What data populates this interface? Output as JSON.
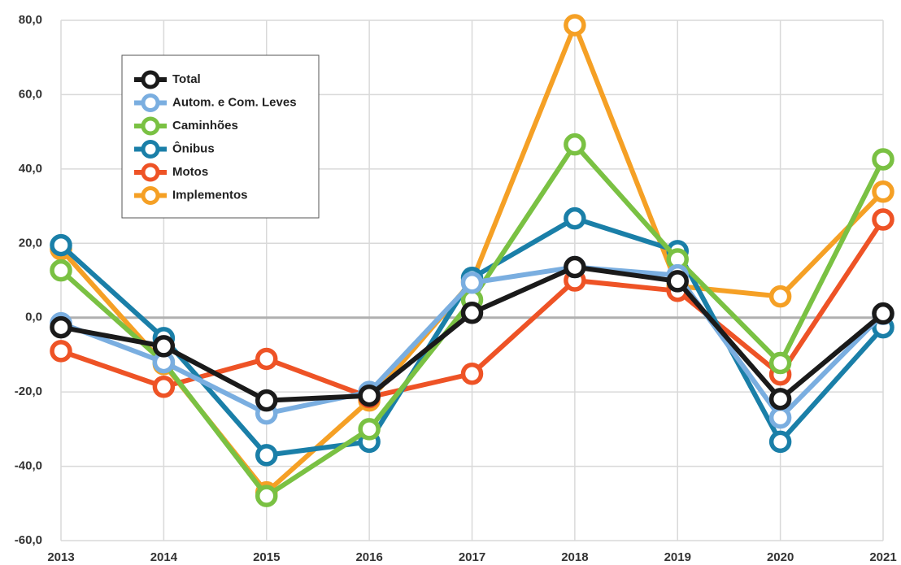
{
  "chart_data": {
    "type": "line",
    "categories": [
      "2013",
      "2014",
      "2015",
      "2016",
      "2017",
      "2018",
      "2019",
      "2020",
      "2021"
    ],
    "series": [
      {
        "name": "Total",
        "color": "#1a1a1a",
        "values": [
          -2.6,
          -7.7,
          -22.3,
          -21.0,
          1.3,
          13.6,
          9.8,
          -21.9,
          1.1
        ]
      },
      {
        "name": "Autom. e Com. Leves",
        "color": "#7aaee0",
        "values": [
          -1.5,
          -12.0,
          -25.8,
          -20.0,
          9.4,
          13.6,
          11.4,
          -26.9,
          1.0
        ]
      },
      {
        "name": "Caminhões",
        "color": "#7ac143",
        "values": [
          12.7,
          -12.0,
          -48.0,
          -30.0,
          4.8,
          46.6,
          15.7,
          -12.2,
          42.6
        ]
      },
      {
        "name": "Ônibus",
        "color": "#1a7fa8",
        "values": [
          19.5,
          -5.5,
          -37.0,
          -33.4,
          10.7,
          26.7,
          17.9,
          -33.4,
          -2.6
        ]
      },
      {
        "name": "Motos",
        "color": "#ee5326",
        "values": [
          -9.0,
          -18.6,
          -11.1,
          -21.4,
          -15.1,
          10.0,
          7.2,
          -15.3,
          26.4
        ]
      },
      {
        "name": "Implementos",
        "color": "#f5a025",
        "values": [
          18.4,
          -12.5,
          -47.0,
          -22.3,
          9.8,
          78.7,
          8.5,
          5.7,
          33.9
        ]
      }
    ],
    "ylim": [
      -60,
      80
    ],
    "yticks": [
      {
        "value": -60,
        "label": "-60,0"
      },
      {
        "value": -40,
        "label": "-40,0"
      },
      {
        "value": -20,
        "label": "-20,0"
      },
      {
        "value": 0,
        "label": "0,0"
      },
      {
        "value": 20,
        "label": "20,0"
      },
      {
        "value": 40,
        "label": "40,0"
      },
      {
        "value": 60,
        "label": "60,0"
      },
      {
        "value": 80,
        "label": "80,0"
      }
    ],
    "grid": true,
    "legend": "upper left"
  }
}
